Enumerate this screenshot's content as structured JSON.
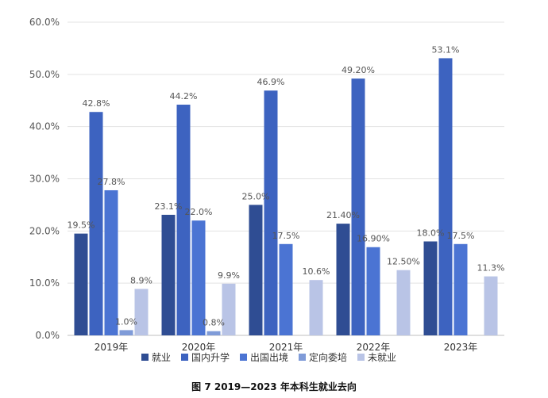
{
  "chart_data": {
    "type": "bar",
    "categories": [
      "2019年",
      "2020年",
      "2021年",
      "2022年",
      "2023年"
    ],
    "ylim": [
      0,
      60
    ],
    "yticks": [
      "0.0%",
      "10.0%",
      "20.0%",
      "30.0%",
      "40.0%",
      "50.0%",
      "60.0%"
    ],
    "grid": true,
    "legend_position": "bottom",
    "series": [
      {
        "name": "就业",
        "color": "#2f4d93",
        "values": [
          19.5,
          23.1,
          25.0,
          21.4,
          18.0
        ],
        "labels": [
          "19.5%",
          "23.1%",
          "25.0%",
          "21.40%",
          "18.0%"
        ]
      },
      {
        "name": "国内升学",
        "color": "#3d63c0",
        "values": [
          42.8,
          44.2,
          46.9,
          49.2,
          53.1
        ],
        "labels": [
          "42.8%",
          "44.2%",
          "46.9%",
          "49.20%",
          "53.1%"
        ]
      },
      {
        "name": "出国出境",
        "color": "#4b74d3",
        "values": [
          27.8,
          22.0,
          17.5,
          16.9,
          17.5
        ],
        "labels": [
          "27.8%",
          "22.0%",
          "17.5%",
          "16.90%",
          "17.5%"
        ]
      },
      {
        "name": "定向委培",
        "color": "#7f9bd8",
        "values": [
          1.0,
          0.8,
          null,
          null,
          null
        ],
        "labels": [
          "1.0%",
          "0.8%",
          null,
          null,
          null
        ]
      },
      {
        "name": "未就业",
        "color": "#b9c4e6",
        "values": [
          8.9,
          9.9,
          10.6,
          12.5,
          11.3
        ],
        "labels": [
          "8.9%",
          "9.9%",
          "10.6%",
          "12.50%",
          "11.3%"
        ]
      }
    ],
    "caption": "图 7   2019—2023 年本科生就业去向"
  }
}
